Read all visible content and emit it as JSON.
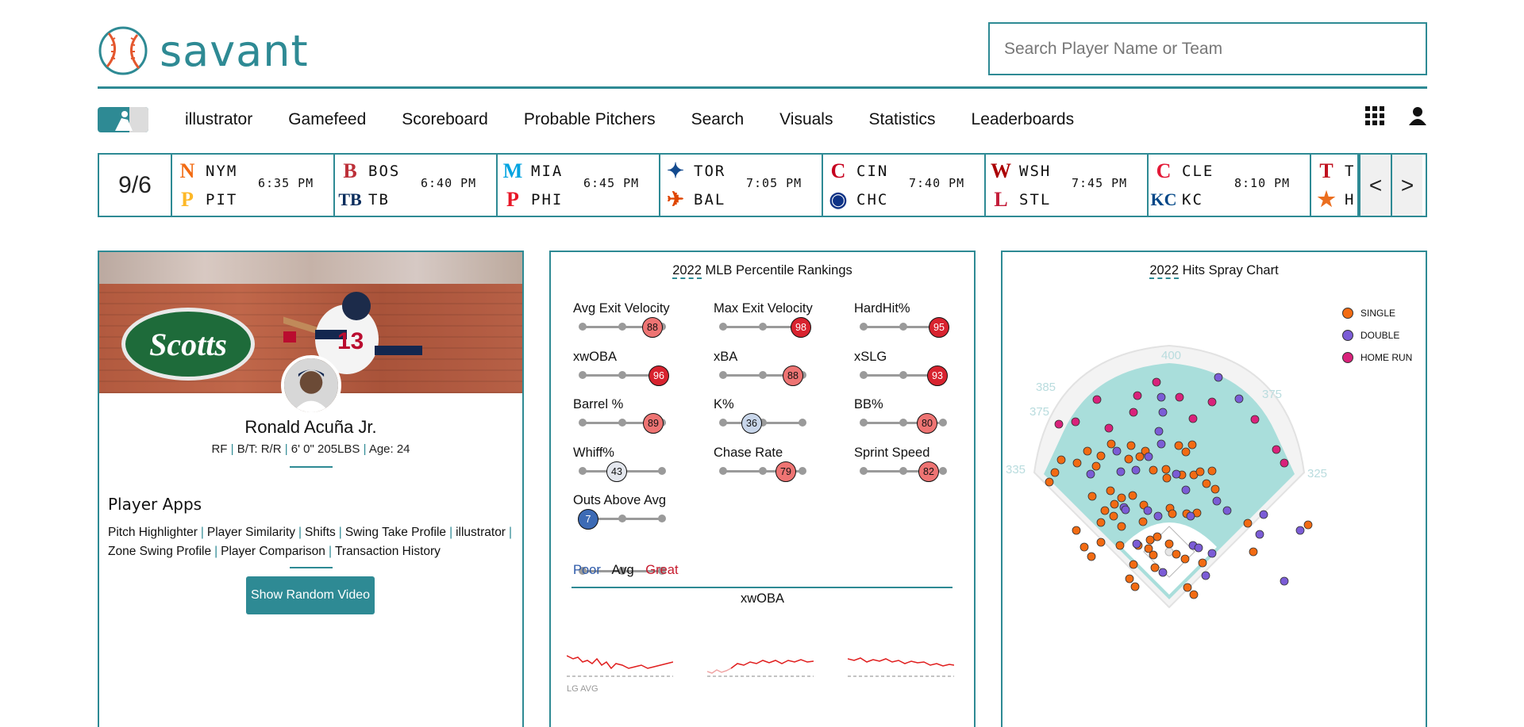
{
  "brand": {
    "name": "savant"
  },
  "search": {
    "placeholder": "Search Player Name or Team"
  },
  "nav": {
    "items": [
      "illustrator",
      "Gamefeed",
      "Scoreboard",
      "Probable Pitchers",
      "Search",
      "Visuals",
      "Statistics",
      "Leaderboards"
    ]
  },
  "scores": {
    "date": "9/6",
    "games": [
      {
        "away": "NYM",
        "home": "PIT",
        "time": "6:35 PM"
      },
      {
        "away": "BOS",
        "home": "TB",
        "time": "6:40 PM"
      },
      {
        "away": "MIA",
        "home": "PHI",
        "time": "6:45 PM"
      },
      {
        "away": "TOR",
        "home": "BAL",
        "time": "7:05 PM"
      },
      {
        "away": "CIN",
        "home": "CHC",
        "time": "7:40 PM"
      },
      {
        "away": "WSH",
        "home": "STL",
        "time": "7:45 PM"
      },
      {
        "away": "CLE",
        "home": "KC",
        "time": "8:10 PM"
      },
      {
        "away": "T",
        "home": "H",
        "time": ""
      }
    ],
    "prev": "<",
    "next": ">"
  },
  "player": {
    "name": "Ronald Acuña Jr.",
    "position": "RF",
    "bt": "B/T: R/R",
    "size": "6' 0\" 205LBS",
    "age": "Age: 24",
    "billboard": "Scotts"
  },
  "apps": {
    "title": "Player Apps",
    "links": [
      "Pitch Highlighter",
      "Player Similarity",
      "Shifts",
      "Swing Take Profile",
      "illustrator",
      "Zone Swing Profile",
      "Player Comparison",
      "Transaction History"
    ],
    "video_button": "Show Random Video"
  },
  "percentiles": {
    "year": "2022",
    "title_rest": "MLB Percentile Rankings",
    "items": [
      {
        "label": "Avg Exit Velocity",
        "value": 88
      },
      {
        "label": "Max Exit Velocity",
        "value": 98
      },
      {
        "label": "HardHit%",
        "value": 95
      },
      {
        "label": "xwOBA",
        "value": 96
      },
      {
        "label": "xBA",
        "value": 88
      },
      {
        "label": "xSLG",
        "value": 93
      },
      {
        "label": "Barrel %",
        "value": 89
      },
      {
        "label": "K%",
        "value": 36
      },
      {
        "label": "BB%",
        "value": 80
      },
      {
        "label": "Whiff%",
        "value": 43
      },
      {
        "label": "Chase Rate",
        "value": 79
      },
      {
        "label": "Sprint Speed",
        "value": 82
      },
      {
        "label": "Outs Above Avg",
        "value": 7
      }
    ],
    "legend": {
      "poor": "Poor",
      "avg": "Avg",
      "great": "Great"
    },
    "colors": {
      "poor": "#2c59a8",
      "great": "#c7192c"
    },
    "xwoba_title": "xwOBA",
    "lg_avg": "LG AVG"
  },
  "spray": {
    "year": "2022",
    "title_rest": "Hits Spray Chart",
    "distances": [
      "400",
      "385",
      "375",
      "375",
      "335",
      "325"
    ],
    "legend": [
      {
        "label": "SINGLE",
        "color": "#f26b13"
      },
      {
        "label": "DOUBLE",
        "color": "#7b5cd6"
      },
      {
        "label": "HOME RUN",
        "color": "#d9227b"
      }
    ]
  },
  "chart_data": {
    "type": "scatter",
    "title": "2022 Hits Spray Chart",
    "series": [
      {
        "name": "SINGLE",
        "points": [
          [
            107,
            211
          ],
          [
            124,
            217
          ],
          [
            137,
            202
          ],
          [
            94,
            226
          ],
          [
            118,
            230
          ],
          [
            162,
            204
          ],
          [
            180,
            211
          ],
          [
            159,
            221
          ],
          [
            173,
            218
          ],
          [
            190,
            235
          ],
          [
            222,
            204
          ],
          [
            231,
            212
          ],
          [
            239,
            203
          ],
          [
            206,
            234
          ],
          [
            207,
            245
          ],
          [
            226,
            241
          ],
          [
            241,
            241
          ],
          [
            249,
            237
          ],
          [
            257,
            252
          ],
          [
            264,
            236
          ],
          [
            74,
            222
          ],
          [
            66,
            238
          ],
          [
            59,
            250
          ],
          [
            113,
            268
          ],
          [
            136,
            261
          ],
          [
            141,
            278
          ],
          [
            129,
            286
          ],
          [
            150,
            270
          ],
          [
            164,
            267
          ],
          [
            140,
            293
          ],
          [
            124,
            301
          ],
          [
            150,
            306
          ],
          [
            178,
            279
          ],
          [
            177,
            300
          ],
          [
            211,
            283
          ],
          [
            214,
            290
          ],
          [
            232,
            290
          ],
          [
            245,
            289
          ],
          [
            268,
            259
          ],
          [
            93,
            311
          ],
          [
            103,
            332
          ],
          [
            112,
            344
          ],
          [
            124,
            326
          ],
          [
            148,
            330
          ],
          [
            171,
            330
          ],
          [
            186,
            323
          ],
          [
            195,
            319
          ],
          [
            165,
            354
          ],
          [
            184,
            334
          ],
          [
            190,
            342
          ],
          [
            192,
            358
          ],
          [
            210,
            328
          ],
          [
            219,
            341
          ],
          [
            230,
            347
          ],
          [
            160,
            372
          ],
          [
            167,
            382
          ],
          [
            241,
            392
          ],
          [
            233,
            383
          ],
          [
            252,
            352
          ],
          [
            309,
            302
          ],
          [
            316,
            338
          ],
          [
            385,
            304
          ]
        ]
      },
      {
        "name": "DOUBLE",
        "points": [
          [
            272,
            118
          ],
          [
            298,
            145
          ],
          [
            200,
            143
          ],
          [
            202,
            162
          ],
          [
            200,
            202
          ],
          [
            197,
            186
          ],
          [
            184,
            218
          ],
          [
            144,
            211
          ],
          [
            149,
            237
          ],
          [
            168,
            235
          ],
          [
            111,
            240
          ],
          [
            219,
            240
          ],
          [
            231,
            260
          ],
          [
            283,
            286
          ],
          [
            324,
            316
          ],
          [
            355,
            375
          ],
          [
            375,
            311
          ],
          [
            329,
            291
          ],
          [
            270,
            274
          ],
          [
            183,
            286
          ],
          [
            153,
            282
          ],
          [
            155,
            285
          ],
          [
            196,
            293
          ],
          [
            237,
            293
          ],
          [
            169,
            328
          ],
          [
            240,
            330
          ],
          [
            247,
            333
          ],
          [
            264,
            340
          ],
          [
            202,
            364
          ],
          [
            256,
            368
          ]
        ]
      },
      {
        "name": "HOME RUN",
        "points": [
          [
            71,
            177
          ],
          [
            92,
            174
          ],
          [
            119,
            146
          ],
          [
            134,
            182
          ],
          [
            170,
            141
          ],
          [
            165,
            162
          ],
          [
            194,
            124
          ],
          [
            223,
            143
          ],
          [
            240,
            170
          ],
          [
            264,
            149
          ],
          [
            318,
            171
          ],
          [
            345,
            209
          ],
          [
            355,
            226
          ]
        ]
      }
    ]
  }
}
